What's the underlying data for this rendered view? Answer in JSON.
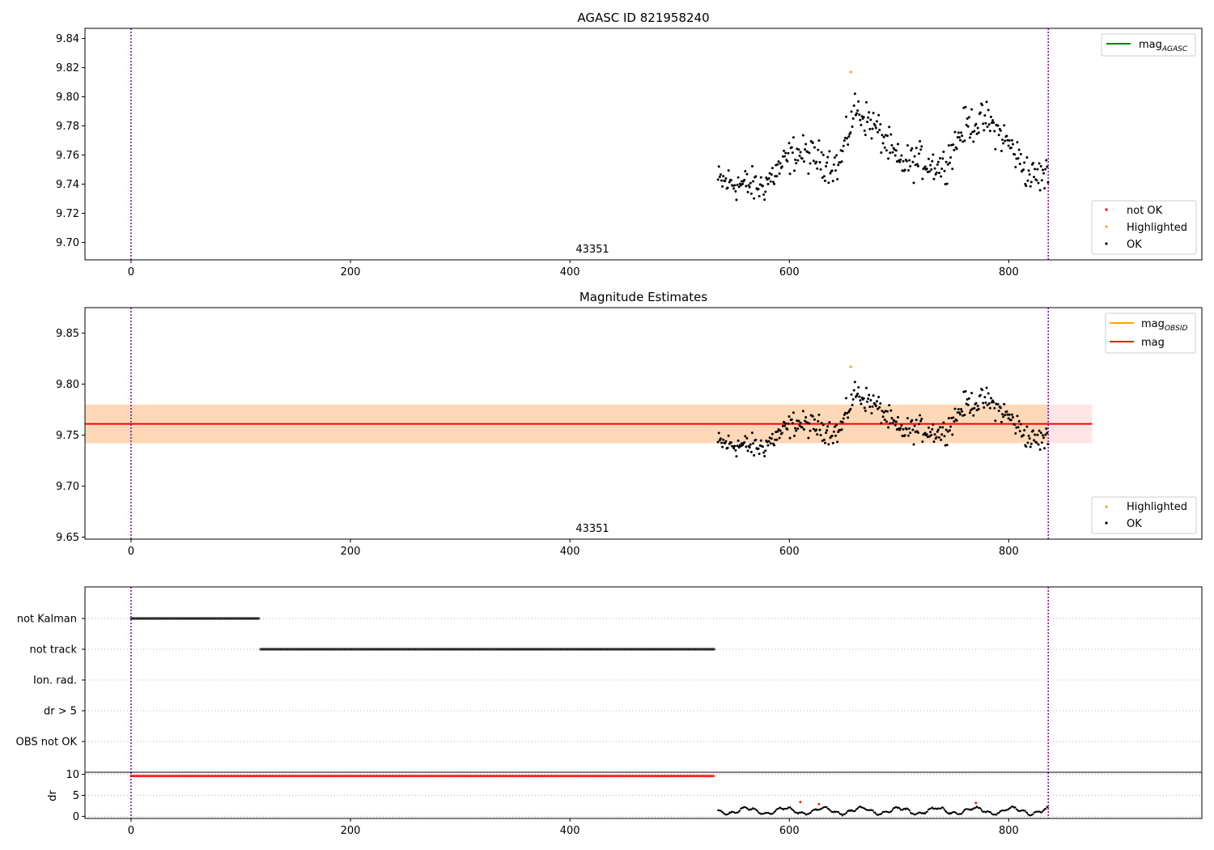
{
  "chart_data": [
    {
      "type": "scatter",
      "title": "AGASC ID 821958240",
      "xlim": [
        -42,
        976
      ],
      "ylim": [
        9.688,
        9.847
      ],
      "yticks": [
        9.7,
        9.72,
        9.74,
        9.76,
        9.78,
        9.8,
        9.82,
        9.84
      ],
      "ytick_labels": [
        "9.70",
        "9.72",
        "9.74",
        "9.76",
        "9.78",
        "9.80",
        "9.82",
        "9.84"
      ],
      "xticks": [
        0,
        200,
        400,
        600,
        800
      ],
      "xtick_labels": [
        "0",
        "200",
        "400",
        "600",
        "800"
      ],
      "vlines": [
        0,
        836
      ],
      "obsid_label": {
        "text": "43351",
        "x": 418
      },
      "series": [
        {
          "name": "OK",
          "color": "#000000"
        },
        {
          "name": "Highlighted",
          "color": "#ffa500",
          "points": [
            [
              656,
              9.817
            ]
          ]
        },
        {
          "name": "not OK",
          "color": "#ff0000",
          "points": []
        }
      ],
      "line_legend": [
        {
          "name": "mag",
          "sub": "AGASC",
          "color": "#008000"
        }
      ]
    },
    {
      "type": "scatter",
      "title": "Magnitude Estimates",
      "xlim": [
        -42,
        976
      ],
      "ylim": [
        9.648,
        9.875
      ],
      "yticks": [
        9.65,
        9.7,
        9.75,
        9.8,
        9.85
      ],
      "ytick_labels": [
        "9.65",
        "9.70",
        "9.75",
        "9.80",
        "9.85"
      ],
      "xticks": [
        0,
        200,
        400,
        600,
        800
      ],
      "xtick_labels": [
        "0",
        "200",
        "400",
        "600",
        "800"
      ],
      "vlines": [
        0,
        836
      ],
      "obsid_label": {
        "text": "43351",
        "x": 418
      },
      "mag": 9.761,
      "band_mag": [
        9.742,
        9.78
      ],
      "band_obsid": [
        9.742,
        9.78
      ],
      "band_x": [
        -42,
        876
      ],
      "series": [
        {
          "name": "OK",
          "color": "#000000"
        },
        {
          "name": "Highlighted",
          "color": "#ffa500",
          "points": [
            [
              656,
              9.817
            ]
          ]
        }
      ],
      "line_legend": [
        {
          "name": "mag",
          "sub": "OBSID",
          "color": "#ffa500"
        },
        {
          "name": "mag",
          "sub": "",
          "color": "#ff0000"
        }
      ]
    },
    {
      "type": "scatter",
      "xlim": [
        -42,
        976
      ],
      "categories": [
        "not Kalman",
        "not track",
        "Ion. rad.",
        "dr > 5",
        "OBS not OK"
      ],
      "flags": [
        {
          "label": "not Kalman",
          "x_range": [
            0,
            117
          ]
        },
        {
          "label": "not track",
          "x_range": [
            118,
            532
          ]
        },
        {
          "label": "Ion. rad.",
          "x_range": []
        },
        {
          "label": "dr > 5",
          "x_range": []
        },
        {
          "label": "OBS not OK",
          "x_range": []
        }
      ],
      "vlines": [
        0,
        836
      ]
    },
    {
      "type": "line",
      "ylabel": "dr",
      "xlim": [
        -42,
        976
      ],
      "ylim": [
        -0.5,
        10.5
      ],
      "yticks": [
        0,
        5,
        10
      ],
      "ytick_labels": [
        "0",
        "5",
        "10"
      ],
      "xticks": [
        0,
        200,
        400,
        600,
        800
      ],
      "xtick_labels": [
        "0",
        "200",
        "400",
        "600",
        "800"
      ],
      "vlines": [
        0,
        836
      ],
      "capped": {
        "x_range": [
          0,
          532
        ],
        "value": 9.6,
        "color": "#ff0000"
      },
      "red_points": [
        [
          610,
          3.4
        ],
        [
          627,
          2.9
        ],
        [
          770,
          3.2
        ]
      ]
    }
  ]
}
